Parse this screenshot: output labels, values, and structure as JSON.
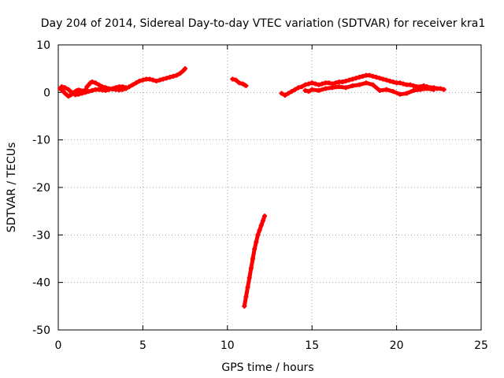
{
  "chart_data": {
    "type": "scatter",
    "title": "Day 204 of 2014, Sidereal Day-to-day VTEC variation (SDTVAR) for receiver kra1",
    "xlabel": "GPS time / hours",
    "ylabel": "SDTVAR / TECUs",
    "xlim": [
      0,
      25
    ],
    "ylim": [
      -50,
      10
    ],
    "xticks": [
      0,
      5,
      10,
      15,
      20,
      25
    ],
    "yticks": [
      -50,
      -40,
      -30,
      -20,
      -10,
      0,
      10
    ],
    "xtick_labels": [
      "0",
      "5",
      "10",
      "15",
      "20",
      "25"
    ],
    "ytick_labels": [
      "-50",
      "-40",
      "-30",
      "-20",
      "-10",
      "0",
      "10"
    ],
    "grid": true,
    "marker_color": "#ff0000",
    "series": [
      {
        "name": "segment-1",
        "x": [
          0.1,
          0.2,
          0.3,
          0.4,
          0.5,
          0.6,
          0.7,
          0.8,
          0.9,
          1.0,
          1.1,
          1.2,
          1.3,
          1.4,
          1.5,
          1.6,
          1.7,
          1.8,
          1.9,
          2.0,
          2.2,
          2.4,
          2.6,
          2.8,
          3.0,
          3.2,
          3.4,
          3.6,
          3.8,
          4.0,
          4.2,
          4.4,
          4.6,
          4.8,
          5.0,
          5.2,
          5.4,
          5.6,
          5.8,
          6.0,
          6.2,
          6.4,
          6.6,
          6.8,
          7.0,
          7.2,
          7.4,
          7.5
        ],
        "y": [
          0.8,
          0.5,
          0.2,
          -0.2,
          -0.5,
          -0.8,
          -0.6,
          -0.4,
          -0.1,
          0.2,
          0.4,
          0.5,
          0.4,
          0.3,
          0.3,
          0.4,
          1.2,
          1.6,
          2.0,
          2.2,
          2.0,
          1.6,
          1.2,
          1.0,
          0.8,
          0.7,
          0.6,
          0.5,
          0.6,
          0.8,
          1.2,
          1.6,
          2.0,
          2.4,
          2.6,
          2.8,
          2.8,
          2.6,
          2.4,
          2.6,
          2.8,
          3.0,
          3.2,
          3.4,
          3.6,
          4.0,
          4.6,
          5.0
        ]
      },
      {
        "name": "segment-1-lower-band",
        "x": [
          0.2,
          0.4,
          0.6,
          0.8,
          1.0,
          1.2,
          1.4,
          1.6,
          1.8,
          2.0,
          2.2,
          2.4,
          2.6,
          2.8,
          3.0,
          3.2,
          3.4,
          3.6,
          3.8,
          4.0
        ],
        "y": [
          1.2,
          1.0,
          0.6,
          0.0,
          -0.5,
          -0.4,
          -0.2,
          0.0,
          0.2,
          0.4,
          0.6,
          0.6,
          0.5,
          0.4,
          0.6,
          0.8,
          1.0,
          1.2,
          1.2,
          1.0
        ]
      },
      {
        "name": "segment-2",
        "x": [
          10.3,
          10.5,
          10.7,
          10.9,
          11.0,
          11.1
        ],
        "y": [
          2.8,
          2.6,
          2.0,
          1.8,
          1.6,
          1.4
        ]
      },
      {
        "name": "segment-3",
        "x": [
          11.0,
          11.1,
          11.2,
          11.3,
          11.4,
          11.5,
          11.6,
          11.7,
          11.8,
          11.9,
          12.0,
          12.1,
          12.2
        ],
        "y": [
          -45,
          -43,
          -41,
          -39,
          -37,
          -35,
          -33,
          -31.5,
          -30,
          -29,
          -28,
          -27,
          -26
        ]
      },
      {
        "name": "segment-4",
        "x": [
          13.2,
          13.4,
          13.6,
          13.8,
          14.0,
          14.2,
          14.4,
          14.6,
          14.8,
          15.0,
          15.2,
          15.4,
          15.6,
          15.8,
          16.0,
          16.2,
          16.4,
          16.6,
          16.8,
          17.0,
          17.2,
          17.4,
          17.6,
          17.8,
          18.0,
          18.2,
          18.4,
          18.6,
          18.8,
          19.0,
          19.2,
          19.4,
          19.6,
          19.8,
          20.0,
          20.2,
          20.4,
          20.6,
          20.8,
          21.0,
          21.2,
          21.4,
          21.6,
          21.8,
          22.0,
          22.2,
          22.4,
          22.6,
          22.8
        ],
        "y": [
          -0.2,
          -0.6,
          -0.2,
          0.2,
          0.6,
          1.0,
          1.2,
          1.6,
          1.8,
          2.0,
          1.8,
          1.6,
          1.8,
          2.0,
          2.0,
          1.8,
          2.0,
          2.2,
          2.2,
          2.4,
          2.6,
          2.8,
          3.0,
          3.2,
          3.4,
          3.6,
          3.6,
          3.4,
          3.2,
          3.0,
          2.8,
          2.6,
          2.4,
          2.2,
          2.0,
          2.0,
          1.8,
          1.6,
          1.6,
          1.4,
          1.2,
          1.2,
          1.4,
          1.2,
          1.0,
          1.0,
          0.8,
          0.8,
          0.6
        ]
      },
      {
        "name": "segment-4-lower-band",
        "x": [
          14.6,
          14.8,
          15.0,
          15.4,
          15.8,
          16.2,
          16.6,
          17.0,
          17.4,
          17.8,
          18.2,
          18.6,
          19.0,
          19.4,
          19.8,
          20.2,
          20.6,
          21.0,
          21.4,
          21.8,
          22.2
        ],
        "y": [
          0.4,
          0.2,
          0.6,
          0.4,
          0.8,
          1.0,
          1.2,
          1.0,
          1.4,
          1.6,
          2.0,
          1.6,
          0.4,
          0.6,
          0.2,
          -0.4,
          -0.2,
          0.4,
          0.6,
          0.8,
          0.6
        ]
      }
    ]
  }
}
